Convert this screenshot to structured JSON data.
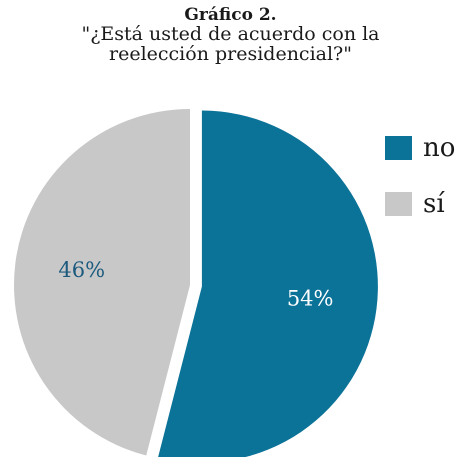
{
  "chart_data": {
    "type": "pie",
    "title": "Gráfico 2.",
    "subtitle": "\"¿Está usted de acuerdo con la\nreelección presidencial?\"",
    "slices": [
      {
        "label": "no",
        "value": 54,
        "display": "54%",
        "color": "#0b7298",
        "label_color": "#ffffff",
        "exploded": true
      },
      {
        "label": "sí",
        "value": 46,
        "display": "46%",
        "color": "#c8c8c8",
        "label_color": "#1c5a7e",
        "exploded": false
      }
    ],
    "legend": {
      "position": "right",
      "entries": [
        "no",
        "sí"
      ]
    }
  }
}
